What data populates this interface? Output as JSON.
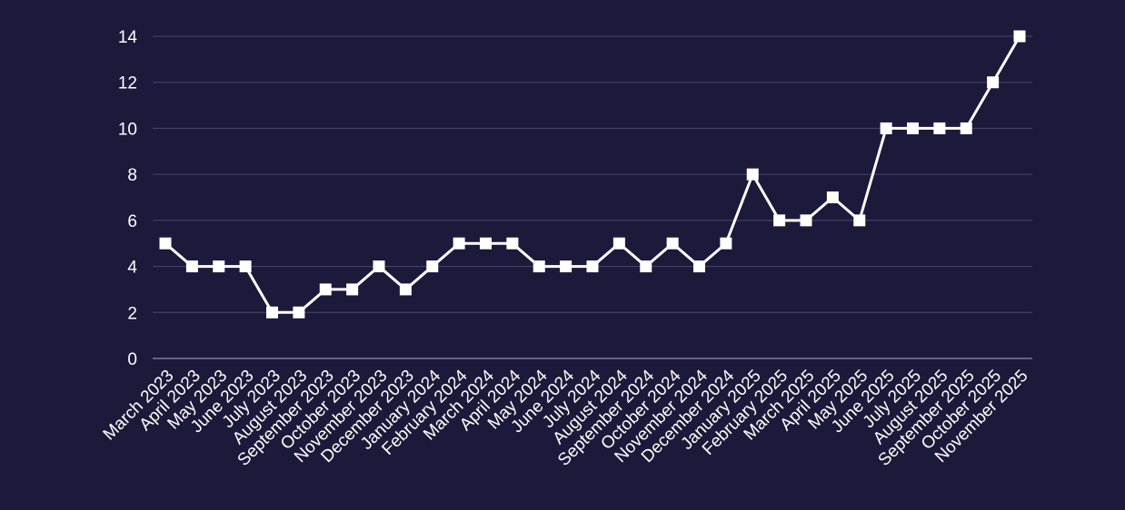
{
  "colors": {
    "background": "#1c1a3a",
    "series": "#ffffff",
    "grid": "#4a4868",
    "text": "#ffffff"
  },
  "chart_data": {
    "type": "line",
    "title": "",
    "xlabel": "",
    "ylabel": "",
    "grid": true,
    "legend": "none",
    "marker": "square",
    "ylim": [
      0,
      14
    ],
    "yticks": [
      0,
      2,
      4,
      6,
      8,
      10,
      12,
      14
    ],
    "categories": [
      "March 2023",
      "April 2023",
      "May 2023",
      "June 2023",
      "July 2023",
      "August 2023",
      "September 2023",
      "October 2023",
      "November 2023",
      "December 2023",
      "January 2024",
      "February 2024",
      "March 2024",
      "April 2024",
      "May 2024",
      "June 2024",
      "July 2024",
      "August 2024",
      "September 2024",
      "October 2024",
      "November 2024",
      "December 2024",
      "January 2025",
      "February 2025",
      "March 2025",
      "April 2025",
      "May 2025",
      "June 2025",
      "July 2025",
      "August 2025",
      "September 2025",
      "October 2025",
      "November 2025"
    ],
    "series": [
      {
        "values": [
          5,
          4,
          4,
          4,
          2,
          2,
          3,
          3,
          4,
          3,
          4,
          5,
          5,
          5,
          4,
          4,
          4,
          5,
          4,
          5,
          4,
          5,
          8,
          6,
          6,
          7,
          6,
          10,
          10,
          10,
          10,
          12,
          14
        ]
      }
    ]
  }
}
